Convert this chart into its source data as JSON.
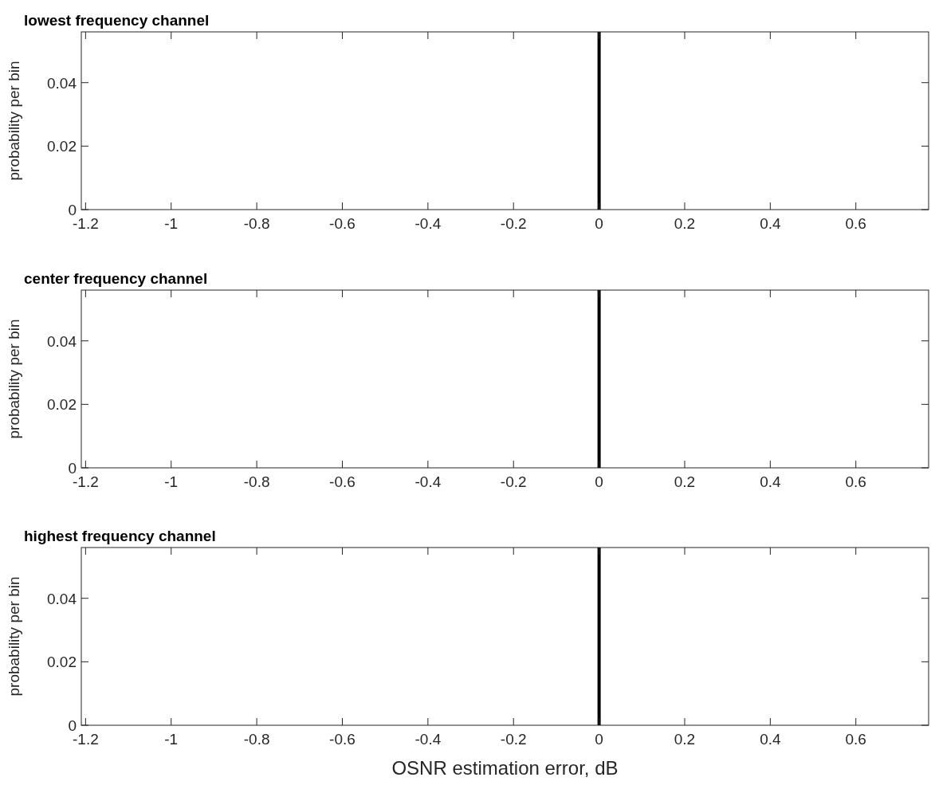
{
  "chart_data": [
    {
      "type": "histogram",
      "title": "lowest frequency channel",
      "ylabel": "probability per bin",
      "xlim": [
        -1.21,
        0.77
      ],
      "ylim": [
        0,
        0.056
      ],
      "xticks": [
        -1.2,
        -1,
        -0.8,
        -0.6,
        -0.4,
        -0.2,
        0,
        0.2,
        0.4,
        0.6
      ],
      "yticks": [
        0,
        0.02,
        0.04
      ],
      "ref_lines": [
        {
          "axis": "x",
          "value": 0,
          "color": "#000000"
        }
      ]
    },
    {
      "type": "histogram",
      "title": "center frequency channel",
      "ylabel": "probability per bin",
      "xlim": [
        -1.21,
        0.77
      ],
      "ylim": [
        0,
        0.056
      ],
      "xticks": [
        -1.2,
        -1,
        -0.8,
        -0.6,
        -0.4,
        -0.2,
        0,
        0.2,
        0.4,
        0.6
      ],
      "yticks": [
        0,
        0.02,
        0.04
      ],
      "ref_lines": [
        {
          "axis": "x",
          "value": 0,
          "color": "#000000"
        }
      ]
    },
    {
      "type": "histogram",
      "title": "highest frequency channel",
      "ylabel": "probability per bin",
      "xlabel": "OSNR estimation error, dB",
      "xlim": [
        -1.21,
        0.77
      ],
      "ylim": [
        0,
        0.056
      ],
      "xticks": [
        -1.2,
        -1,
        -0.8,
        -0.6,
        -0.4,
        -0.2,
        0,
        0.2,
        0.4,
        0.6
      ],
      "yticks": [
        0,
        0.02,
        0.04
      ],
      "ref_lines": [
        {
          "axis": "x",
          "value": 0,
          "color": "#000000"
        }
      ]
    }
  ]
}
